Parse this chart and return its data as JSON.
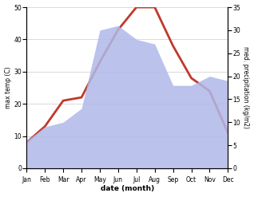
{
  "months": [
    "Jan",
    "Feb",
    "Mar",
    "Apr",
    "May",
    "Jun",
    "Jul",
    "Aug",
    "Sep",
    "Oct",
    "Nov",
    "Dec"
  ],
  "temp": [
    8,
    13,
    21,
    22,
    33,
    43,
    50,
    50,
    38,
    28,
    24,
    11
  ],
  "precip": [
    6,
    9,
    10,
    13,
    30,
    31,
    28,
    27,
    18,
    18,
    20,
    19
  ],
  "temp_color": "#c0392b",
  "precip_fill_color": "#b0b8e8",
  "ylabel_left": "max temp (C)",
  "ylabel_right": "med. precipitation (kg/m2)",
  "xlabel": "date (month)",
  "ylim_left": [
    0,
    50
  ],
  "ylim_right": [
    0,
    35
  ],
  "yticks_left": [
    0,
    10,
    20,
    30,
    40,
    50
  ],
  "yticks_right": [
    0,
    5,
    10,
    15,
    20,
    25,
    30,
    35
  ],
  "line_width": 2.0,
  "bg_color": "#ffffff"
}
